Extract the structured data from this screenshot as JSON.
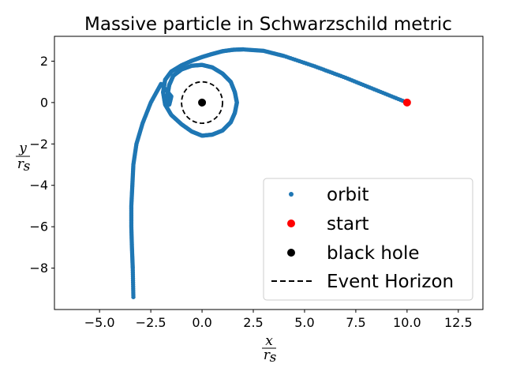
{
  "chart_data": {
    "type": "scatter",
    "title": "Massive particle in Schwarzschild metric",
    "xlabel": {
      "numerator": "x",
      "denominator": "r",
      "subscript": "s"
    },
    "ylabel": {
      "numerator": "y",
      "denominator": "r",
      "subscript": "s"
    },
    "xlim": [
      -7.2,
      13.7
    ],
    "ylim": [
      -10.0,
      3.2
    ],
    "xticks": [
      -5.0,
      -2.5,
      0.0,
      2.5,
      5.0,
      7.5,
      10.0,
      12.5
    ],
    "xtick_labels": [
      "−5.0",
      "−2.5",
      "0.0",
      "2.5",
      "5.0",
      "7.5",
      "10.0",
      "12.5"
    ],
    "yticks": [
      2,
      0,
      -2,
      -4,
      -6,
      -8
    ],
    "ytick_labels": [
      "2",
      "0",
      "−2",
      "−4",
      "−6",
      "−8"
    ],
    "grid": false,
    "legend": {
      "placement": "lower right"
    },
    "series": [
      {
        "name": "orbit",
        "marker": "point",
        "color": "#1f77b4",
        "x": [
          10.0,
          8.5,
          7.0,
          5.5,
          4.0,
          3.0,
          2.0,
          1.5,
          1.0,
          0.5,
          0.0,
          -0.5,
          -1.0,
          -1.5,
          -1.8,
          -1.9,
          -1.8,
          -1.5,
          -1.0,
          -0.5,
          0.0,
          0.5,
          1.0,
          1.4,
          1.6,
          1.7,
          1.6,
          1.4,
          1.0,
          0.5,
          0.0,
          -0.5,
          -1.0,
          -1.4,
          -1.6,
          -1.7,
          -1.6,
          -1.5,
          -2.0,
          -2.5,
          -2.9,
          -3.2,
          -3.35,
          -3.4,
          -3.45,
          -3.45,
          -3.42,
          -3.38,
          -3.35
        ],
        "y": [
          0.0,
          0.6,
          1.2,
          1.75,
          2.25,
          2.5,
          2.57,
          2.55,
          2.48,
          2.35,
          2.2,
          2.02,
          1.8,
          1.5,
          1.1,
          0.5,
          -0.1,
          -0.6,
          -1.05,
          -1.4,
          -1.6,
          -1.55,
          -1.35,
          -0.95,
          -0.5,
          0.0,
          0.5,
          1.0,
          1.4,
          1.7,
          1.82,
          1.78,
          1.6,
          1.3,
          0.85,
          0.3,
          -0.1,
          0.3,
          0.9,
          0.0,
          -1.0,
          -2.0,
          -3.0,
          -4.0,
          -5.0,
          -6.0,
          -7.0,
          -8.0,
          -9.4
        ]
      },
      {
        "name": "start",
        "marker": "circle",
        "color": "#ff0000",
        "x": [
          10.0
        ],
        "y": [
          0.0
        ]
      },
      {
        "name": "black hole",
        "marker": "circle",
        "color": "#000000",
        "x": [
          0.0
        ],
        "y": [
          0.0
        ]
      },
      {
        "name": "Event Horizon",
        "marker": "dashed-line",
        "color": "#000000",
        "center": [
          0.0,
          0.0
        ],
        "radius": 1.0
      }
    ]
  }
}
